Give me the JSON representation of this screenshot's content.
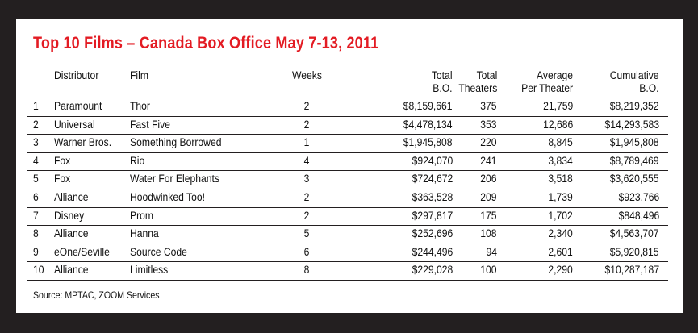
{
  "title": "Top 10 Films – Canada Box Office May 7-13, 2011",
  "headers": {
    "distributor": "Distributor",
    "film": "Film",
    "weeks": "Weeks",
    "total_bo_1": "Total",
    "total_bo_2": "B.O.",
    "total_theaters_1": "Total",
    "total_theaters_2": "Theaters",
    "avg_1": "Average",
    "avg_2": "Per Theater",
    "cum_1": "Cumulative",
    "cum_2": "B.O."
  },
  "rows": [
    {
      "rank": "1",
      "distributor": "Paramount",
      "film": "Thor",
      "weeks": "2",
      "total_bo": "$8,159,661",
      "theaters": "375",
      "avg": "21,759",
      "cumulative": "$8,219,352"
    },
    {
      "rank": "2",
      "distributor": "Universal",
      "film": "Fast Five",
      "weeks": "2",
      "total_bo": "$4,478,134",
      "theaters": "353",
      "avg": "12,686",
      "cumulative": "$14,293,583"
    },
    {
      "rank": "3",
      "distributor": "Warner Bros.",
      "film": "Something Borrowed",
      "weeks": "1",
      "total_bo": "$1,945,808",
      "theaters": "220",
      "avg": "8,845",
      "cumulative": "$1,945,808"
    },
    {
      "rank": "4",
      "distributor": "Fox",
      "film": "Rio",
      "weeks": "4",
      "total_bo": "$924,070",
      "theaters": "241",
      "avg": "3,834",
      "cumulative": "$8,789,469"
    },
    {
      "rank": "5",
      "distributor": "Fox",
      "film": "Water For Elephants",
      "weeks": "3",
      "total_bo": "$724,672",
      "theaters": "206",
      "avg": "3,518",
      "cumulative": "$3,620,555"
    },
    {
      "rank": "6",
      "distributor": "Alliance",
      "film": "Hoodwinked Too!",
      "weeks": "2",
      "total_bo": "$363,528",
      "theaters": "209",
      "avg": "1,739",
      "cumulative": "$923,766"
    },
    {
      "rank": "7",
      "distributor": "Disney",
      "film": "Prom",
      "weeks": "2",
      "total_bo": "$297,817",
      "theaters": "175",
      "avg": "1,702",
      "cumulative": "$848,496"
    },
    {
      "rank": "8",
      "distributor": "Alliance",
      "film": "Hanna",
      "weeks": "5",
      "total_bo": "$252,696",
      "theaters": "108",
      "avg": "2,340",
      "cumulative": "$4,563,707"
    },
    {
      "rank": "9",
      "distributor": "eOne/Seville",
      "film": "Source Code",
      "weeks": "6",
      "total_bo": "$244,496",
      "theaters": "94",
      "avg": "2,601",
      "cumulative": "$5,920,815"
    },
    {
      "rank": "10",
      "distributor": "Alliance",
      "film": "Limitless",
      "weeks": "8",
      "total_bo": "$229,028",
      "theaters": "100",
      "avg": "2,290",
      "cumulative": "$10,287,187"
    }
  ],
  "source": "Source: MPTAC, ZOOM Services",
  "colors": {
    "title": "#e31b23",
    "background": "#231f20",
    "card": "#ffffff"
  }
}
